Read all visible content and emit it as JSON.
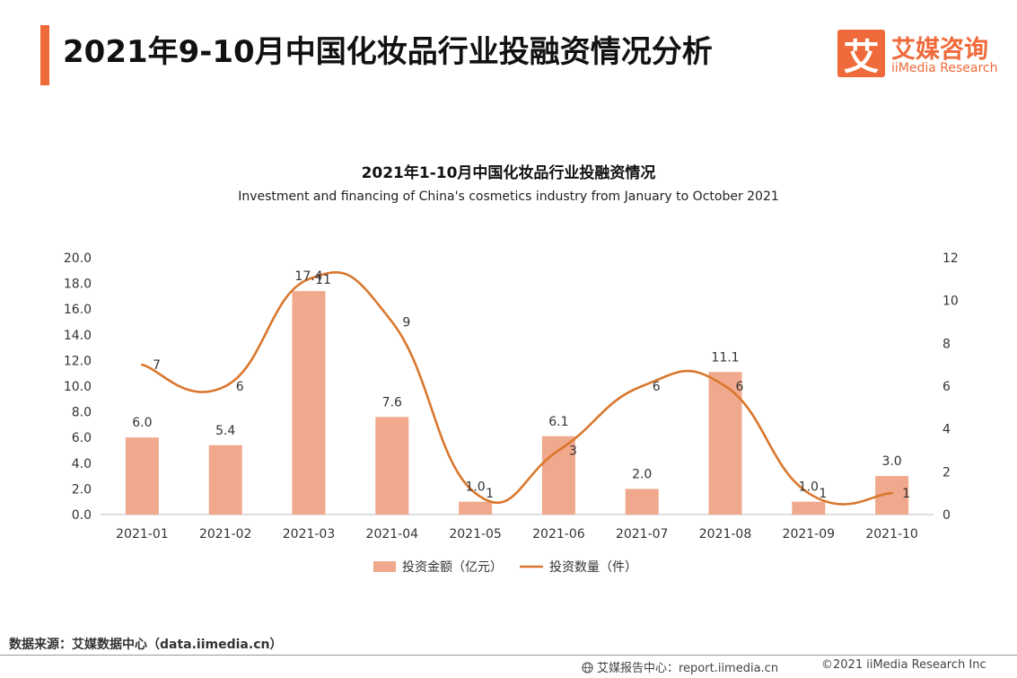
{
  "page": {
    "title": "2021年9-10月中国化妆品行业投融资情况分析",
    "accent_color": "#ef6a3a"
  },
  "logo": {
    "glyph": "艾",
    "name_cn": "艾媒咨询",
    "name_en": "iiMedia Research"
  },
  "footer": {
    "source": "数据来源：艾媒数据中心（data.iimedia.cn）",
    "report_center": "艾媒报告中心：report.iimedia.cn",
    "copyright": "©2021  iiMedia Research  Inc",
    "globe_icon": "globe-icon"
  },
  "chart_data": {
    "type": "bar+line",
    "title": "2021年1-10月中国化妆品行业投融资情况",
    "subtitle": "Investment and financing of China's cosmetics industry from January to October 2021",
    "categories": [
      "2021-01",
      "2021-02",
      "2021-03",
      "2021-04",
      "2021-05",
      "2021-06",
      "2021-07",
      "2021-08",
      "2021-09",
      "2021-10"
    ],
    "series": [
      {
        "name": "投资金额（亿元）",
        "type": "bar",
        "axis": "left",
        "color": "#f0a98c",
        "values": [
          6.0,
          5.4,
          17.4,
          7.6,
          1.0,
          6.1,
          2.0,
          11.1,
          1.0,
          3.0
        ],
        "labels": [
          "6.0",
          "5.4",
          "17.4",
          "7.6",
          "1.0",
          "6.1",
          "2.0",
          "11.1",
          "1.0",
          "3.0"
        ]
      },
      {
        "name": "投资数量（件）",
        "type": "line",
        "axis": "right",
        "color": "#d9772e",
        "values": [
          7,
          6,
          11,
          9,
          1,
          3,
          6,
          6,
          1,
          1
        ],
        "labels": [
          "7",
          "6",
          "11",
          "9",
          "1",
          "3",
          "6",
          "6",
          "1",
          "1"
        ]
      }
    ],
    "y_left": {
      "range": [
        0,
        20
      ],
      "ticks": [
        "0.0",
        "2.0",
        "4.0",
        "6.0",
        "8.0",
        "10.0",
        "12.0",
        "14.0",
        "16.0",
        "18.0",
        "20.0"
      ]
    },
    "y_right": {
      "range": [
        0,
        12
      ],
      "ticks": [
        "0",
        "2",
        "4",
        "6",
        "8",
        "10",
        "12"
      ]
    },
    "grid": false,
    "legend": "bottom-center"
  }
}
